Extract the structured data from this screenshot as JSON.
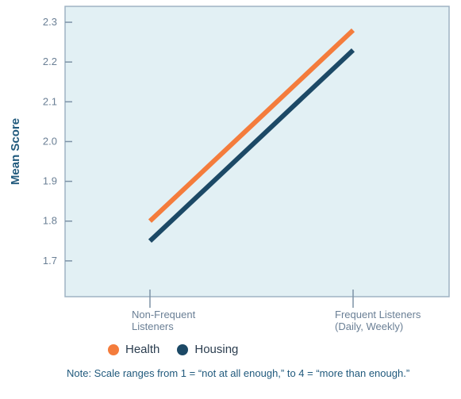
{
  "chart_data": {
    "type": "line",
    "categories": [
      "Non-Frequent Listeners",
      "Frequent Listeners (Daily, Weekly)"
    ],
    "category_lines": [
      [
        "Non-Frequent",
        "Listeners"
      ],
      [
        "Frequent Listeners",
        "(Daily, Weekly)"
      ]
    ],
    "series": [
      {
        "name": "Health",
        "values": [
          1.8,
          2.28
        ],
        "color": "#f47c3c"
      },
      {
        "name": "Housing",
        "values": [
          1.75,
          2.23
        ],
        "color": "#1c4966"
      }
    ],
    "xlabel": "",
    "ylabel": "Mean Score",
    "ylim": [
      1.61,
      2.34
    ],
    "yticks": [
      "1.7",
      "1.8",
      "1.9",
      "2.0",
      "2.1",
      "2.2",
      "2.3"
    ],
    "grid": false,
    "legend": "bottom",
    "note": "Note: Scale ranges from 1 = “not at all enough,” to 4 = “more than enough.”",
    "plot_background": "#e2f0f4",
    "frame_color": "#9fb3c3"
  }
}
